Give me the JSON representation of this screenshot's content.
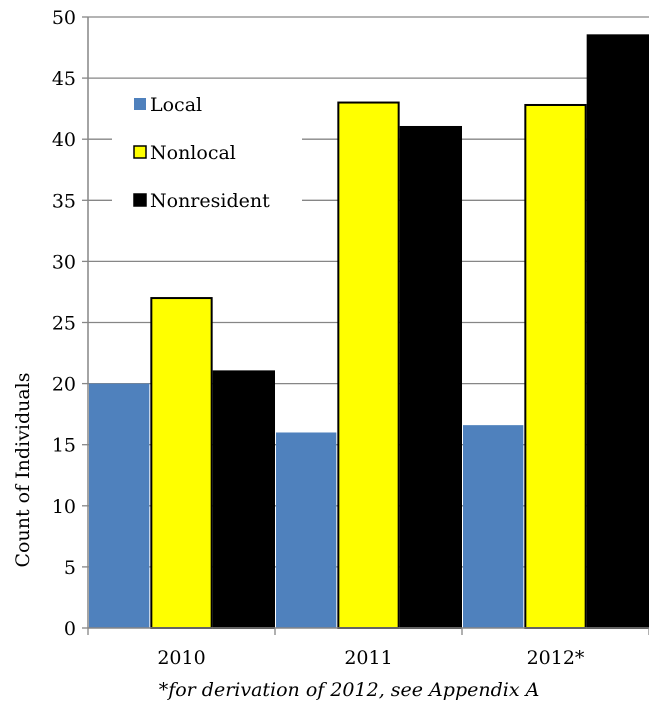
{
  "chart_data": {
    "type": "bar",
    "title": "",
    "xlabel": "",
    "ylabel": "Count of Individuals",
    "ylim": [
      0,
      50
    ],
    "yticks": [
      0,
      5,
      10,
      15,
      20,
      25,
      30,
      35,
      40,
      45,
      50
    ],
    "categories": [
      "2010",
      "2011",
      "2012*"
    ],
    "series": [
      {
        "name": "Local",
        "color": "#4F81BD",
        "values": [
          20,
          16,
          16.6
        ]
      },
      {
        "name": "Nonlocal",
        "color": "#FFFF00",
        "values": [
          27,
          43,
          42.8
        ]
      },
      {
        "name": "Nonresident",
        "color": "#000000",
        "values": [
          21,
          41,
          48.5
        ]
      }
    ],
    "grid": true,
    "legend_position": "top-left",
    "footnote": "*for derivation of 2012, see Appendix A"
  }
}
